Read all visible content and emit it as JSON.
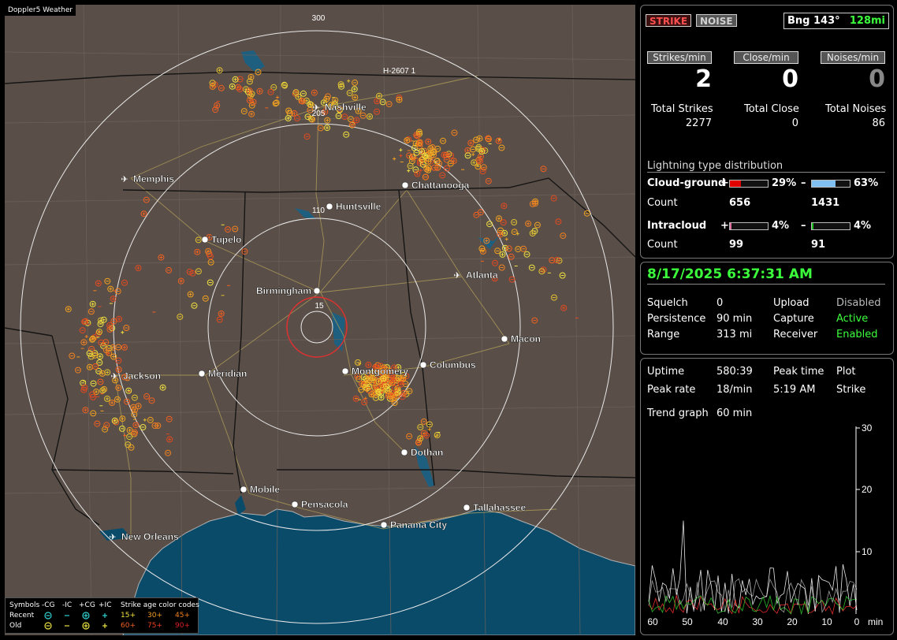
{
  "app_title": "Doppler5 Weather",
  "status": {
    "strike_label": "STRIKE",
    "noise_label": "NOISE",
    "bearing": "Bng 143°",
    "distance": "128mi"
  },
  "rates": {
    "strikes_header": "Strikes/min",
    "close_header": "Close/min",
    "noises_header": "Noises/min",
    "strikes": "2",
    "close": "0",
    "noises": "0",
    "total_strikes_label": "Total Strikes",
    "total_close_label": "Total Close",
    "total_noises_label": "Total Noises",
    "total_strikes": "2277",
    "total_close": "0",
    "total_noises": "86"
  },
  "distribution": {
    "title": "Lightning type distribution",
    "cg_label": "Cloud-ground",
    "ic_label": "Intracloud",
    "count_label": "Count",
    "plus_sign": "+",
    "minus_sign": "–",
    "cg_pos_pct": "29%",
    "cg_neg_pct": "63%",
    "cg_pos_count": "656",
    "cg_neg_count": "1431",
    "ic_pos_pct": "4%",
    "ic_neg_pct": "4%",
    "ic_pos_count": "99",
    "ic_neg_count": "91",
    "cg_pos_fraction": 0.29,
    "cg_neg_fraction": 0.63,
    "ic_pos_fraction": 0.04,
    "ic_neg_fraction": 0.04,
    "colors": {
      "cg_pos": "#e00000",
      "cg_neg": "#80c0f0",
      "ic_pos": "#e070a0",
      "ic_neg": "#20c020"
    }
  },
  "settings": {
    "datetime": "8/17/2025 6:37:31 AM",
    "squelch_label": "Squelch",
    "squelch": "0",
    "upload_label": "Upload",
    "upload": "Disabled",
    "persistence_label": "Persistence",
    "persistence": "90 min",
    "capture_label": "Capture",
    "capture": "Active",
    "range_label": "Range",
    "range": "313 mi",
    "receiver_label": "Receiver",
    "receiver": "Enabled"
  },
  "stats": {
    "uptime_label": "Uptime",
    "uptime": "580:39",
    "peak_time_label": "Peak time",
    "plot_label": "Plot",
    "peak_rate_label": "Peak rate",
    "peak_rate": "18/min",
    "peak_time": "5:19 AM",
    "plot": "Strike",
    "trend_label": "Trend graph",
    "trend": "60 min"
  },
  "trend_chart": {
    "x_ticks": [
      "60",
      "50",
      "40",
      "30",
      "20",
      "10",
      "0"
    ],
    "x_unit": "min",
    "y_ticks": [
      "30",
      "20",
      "10"
    ]
  },
  "map": {
    "range_labels": [
      "300",
      "205",
      "110",
      "15"
    ],
    "route_label": "H-2607 1",
    "cities": [
      {
        "name": "Nashville",
        "airport": true
      },
      {
        "name": "Memphis",
        "airport": true
      },
      {
        "name": "Chattanooga",
        "airport": false
      },
      {
        "name": "Huntsville",
        "airport": false
      },
      {
        "name": "Tupelo",
        "airport": false
      },
      {
        "name": "Atlanta",
        "airport": true
      },
      {
        "name": "Birmingham",
        "airport": false
      },
      {
        "name": "Macon",
        "airport": false
      },
      {
        "name": "Jackson",
        "airport": true
      },
      {
        "name": "Meridian",
        "airport": false
      },
      {
        "name": "Montgomery",
        "airport": false
      },
      {
        "name": "Columbus",
        "airport": false
      },
      {
        "name": "Dothan",
        "airport": false
      },
      {
        "name": "Mobile",
        "airport": false
      },
      {
        "name": "Pensacola",
        "airport": false
      },
      {
        "name": "Tallahassee",
        "airport": false
      },
      {
        "name": "Panama City",
        "airport": false
      },
      {
        "name": "New Orleans",
        "airport": true
      }
    ]
  },
  "legend": {
    "symbols_label": "Symbols",
    "neg_cg": "-CG",
    "neg_ic": "-IC",
    "pos_cg": "+CG",
    "pos_ic": "+IC",
    "age_title": "Strike age color codes",
    "recent_label": "Recent",
    "old_label": "Old",
    "age_recent": [
      "15+",
      "30+",
      "45+"
    ],
    "age_old": [
      "60+",
      "75+",
      "90+"
    ]
  }
}
